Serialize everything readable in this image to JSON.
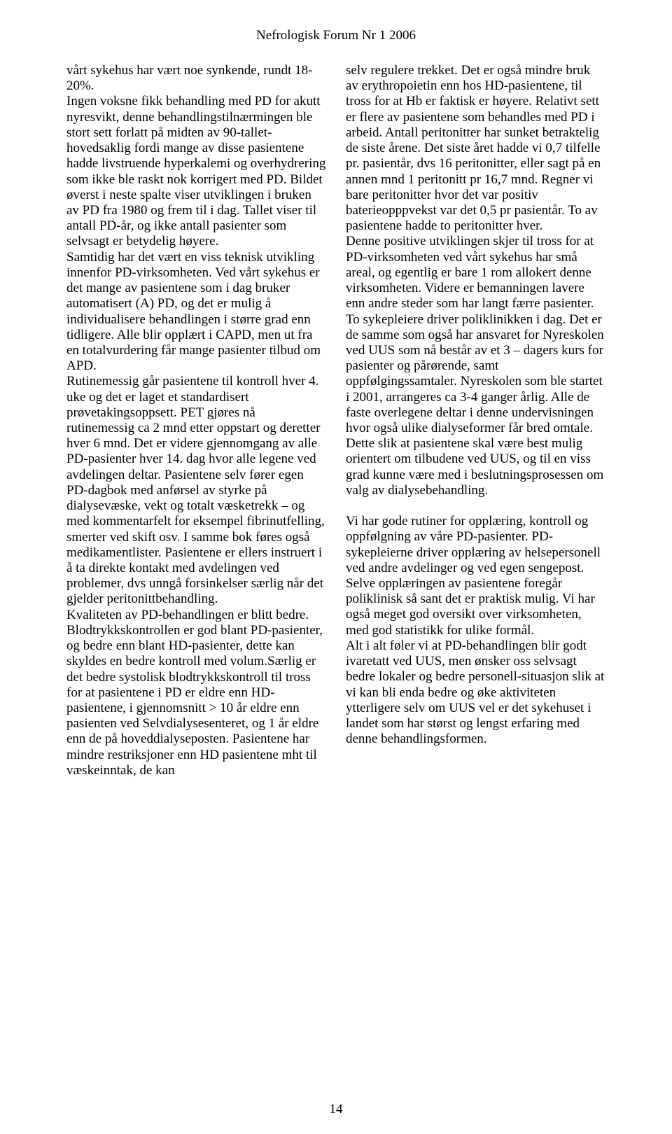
{
  "header": "Nefrologisk Forum Nr 1 2006",
  "page_number": "14",
  "left_column": {
    "p1": "vårt sykehus har vært noe synkende, rundt 18-20%.",
    "p2": "Ingen voksne fikk behandling med PD for akutt nyresvikt, denne behandlingstilnærmingen ble stort sett forlatt på midten av 90-tallet- hovedsaklig fordi mange av disse pasientene hadde livstruende hyperkalemi og overhydrering som ikke ble raskt nok korrigert med PD. Bildet øverst i neste spalte viser utviklingen i bruken av PD fra 1980 og frem til i dag. Tallet viser til antall PD-år, og ikke antall pasienter som selvsagt er betydelig høyere.",
    "p3": "Samtidig har det vært en viss teknisk utvikling innenfor PD-virksomheten. Ved vårt sykehus er det mange av pasientene som i dag bruker automatisert (A) PD, og det er mulig å individualisere behandlingen i større grad enn tidligere. Alle blir opplært i CAPD, men ut fra en totalvurdering får mange pasienter tilbud om APD.",
    "p4": "Rutinemessig går pasientene til kontroll hver 4. uke og det er laget et standardisert prøvetakingsoppsett. PET gjøres nå rutinemessig ca 2 mnd etter oppstart og deretter hver 6 mnd. Det er videre gjennomgang av alle PD-pasienter hver 14. dag hvor alle legene ved avdelingen deltar. Pasientene selv fører egen PD-dagbok med anførsel av styrke på dialysevæske, vekt og totalt væsketrekk – og med kommentarfelt for eksempel fibrinutfelling, smerter ved skift osv. I samme bok føres også medikamentlister. Pasientene er ellers instruert i å ta direkte kontakt med avdelingen ved problemer, dvs unngå forsinkelser særlig når det gjelder peritonittbehandling.",
    "p5": "Kvaliteten av PD-behandlingen er blitt bedre. Blodtrykkskontrollen er god blant PD-pasienter, og bedre enn blant HD-pasienter, dette kan skyldes en bedre kontroll med volum.Særlig er det bedre systolisk blodtrykkskontroll til tross for at pasientene i PD er eldre enn HD-pasientene, i gjennomsnitt > 10 år eldre enn pasienten ved Selvdialysesenteret, og 1 år eldre enn de på hoveddialyseposten. Pasientene har mindre restriksjoner enn HD pasientene mht til væskeinntak, de kan"
  },
  "right_column": {
    "p1": "selv regulere trekket. Det er også mindre bruk av erythropoietin enn hos HD-pasientene, til tross for at Hb er faktisk er høyere. Relativt sett er flere av pasientene som behandles med PD i arbeid. Antall peritonitter har sunket betraktelig de siste årene. Det siste året hadde vi 0,7 tilfelle pr. pasientår, dvs 16 peritonitter, eller sagt på en annen mnd 1 peritonitt pr 16,7 mnd. Regner vi bare peritonitter hvor det var positiv baterieopppvekst var det 0,5 pr pasientår. To av pasientene hadde to peritonitter hver.",
    "p2": "Denne positive utviklingen skjer til tross for at PD-virksomheten ved vårt sykehus har små areal, og egentlig er bare 1 rom allokert denne virksomheten. Videre er bemanningen lavere enn andre steder som har langt færre pasienter. To sykepleiere driver poliklinikken i dag. Det er de samme som også har ansvaret for Nyreskolen ved UUS som nå består av et 3 – dagers kurs for pasienter og pårørende, samt oppfølgingssamtaler. Nyreskolen som ble startet i 2001, arrangeres ca 3-4 ganger årlig. Alle de faste overlegene deltar i denne undervisningen hvor også ulike dialyseformer får bred omtale. Dette slik at pasientene skal være best mulig orientert om tilbudene ved UUS, og til en viss grad kunne være med i beslutningsprosessen om valg av dialysebehandling.",
    "p3": "Vi har gode rutiner for opplæring, kontroll og oppfølgning av våre PD-pasienter. PD-sykepleierne driver opplæring av helsepersonell ved andre avdelinger og ved egen sengepost. Selve opplæringen av pasientene foregår poliklinisk så sant det er praktisk mulig. Vi har også meget god oversikt over virksomheten, med god statistikk for ulike formål.",
    "p4": "Alt i alt føler vi at PD-behandlingen blir godt ivaretatt ved UUS, men ønsker oss selvsagt bedre lokaler og bedre personell-situasjon slik at vi kan bli enda bedre og øke aktiviteten ytterligere selv om UUS vel er det sykehuset i landet som har størst og lengst erfaring med denne behandlingsformen."
  }
}
